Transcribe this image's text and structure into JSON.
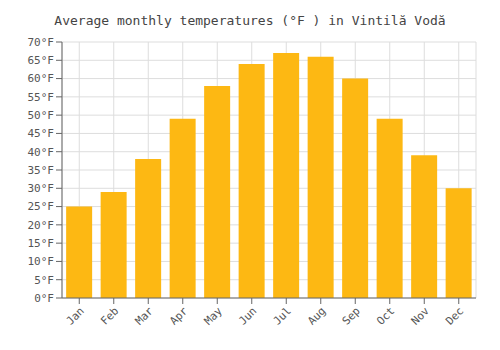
{
  "chart_data": {
    "type": "bar",
    "title": "Average monthly temperatures (°F ) in Vintilă Vodă",
    "categories": [
      "Jan",
      "Feb",
      "Mar",
      "Apr",
      "May",
      "Jun",
      "Jul",
      "Aug",
      "Sep",
      "Oct",
      "Nov",
      "Dec"
    ],
    "values": [
      25,
      29,
      38,
      49,
      58,
      64,
      67,
      66,
      60,
      49,
      39,
      30
    ],
    "color": "#FDB813",
    "ylim": [
      0,
      70
    ],
    "yticks": [
      {
        "value": 0,
        "label": "0°F"
      },
      {
        "value": 5,
        "label": "5°F"
      },
      {
        "value": 10,
        "label": "10°F"
      },
      {
        "value": 15,
        "label": "15°F"
      },
      {
        "value": 20,
        "label": "20°F"
      },
      {
        "value": 25,
        "label": "25°F"
      },
      {
        "value": 30,
        "label": "30°F"
      },
      {
        "value": 35,
        "label": "35°F"
      },
      {
        "value": 40,
        "label": "40°F"
      },
      {
        "value": 45,
        "label": "45°F"
      },
      {
        "value": 50,
        "label": "50°F"
      },
      {
        "value": 55,
        "label": "55°F"
      },
      {
        "value": 60,
        "label": "60°F"
      },
      {
        "value": 65,
        "label": "65°F"
      },
      {
        "value": 70,
        "label": "70°F"
      }
    ],
    "grid": true
  }
}
